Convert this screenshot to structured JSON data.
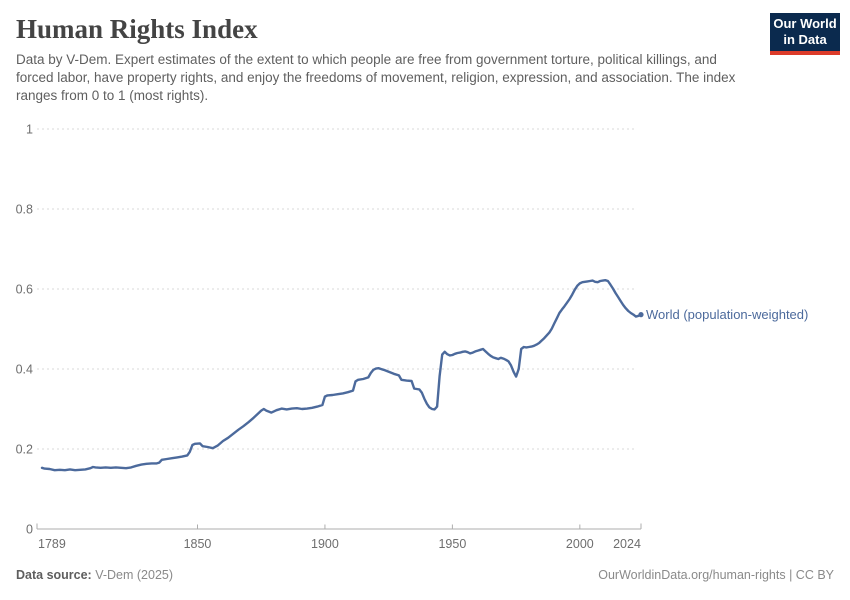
{
  "header": {
    "title": "Human Rights Index",
    "subtitle": "Data by V-Dem. Expert estimates of the extent to which people are free from government torture, political killings, and forced labor, have property rights, and enjoy the freedoms of movement, religion, expression, and association. The index ranges from 0 to 1 (most rights).",
    "logo": {
      "line1": "Our World",
      "line2": "in Data",
      "bg_color": "#0b2a4e",
      "accent_color": "#dc3b2a"
    }
  },
  "chart_data": {
    "type": "line",
    "title": "Human Rights Index",
    "xlabel": "",
    "ylabel": "",
    "xlim": [
      1789,
      2024
    ],
    "ylim": [
      0,
      1
    ],
    "x_ticks": [
      1789,
      1850,
      1900,
      1950,
      2000,
      2024
    ],
    "y_ticks": [
      0,
      0.2,
      0.4,
      0.6,
      0.8,
      1
    ],
    "grid": "dashed-horizontal",
    "legend_position": "right-of-line-end",
    "series": [
      {
        "name": "World (population-weighted)",
        "color": "#4C6A9C",
        "points": [
          [
            1789,
            0.153
          ],
          [
            1790,
            0.151
          ],
          [
            1792,
            0.15
          ],
          [
            1794,
            0.147
          ],
          [
            1796,
            0.148
          ],
          [
            1798,
            0.147
          ],
          [
            1800,
            0.149
          ],
          [
            1802,
            0.147
          ],
          [
            1804,
            0.148
          ],
          [
            1806,
            0.149
          ],
          [
            1808,
            0.152
          ],
          [
            1809,
            0.155
          ],
          [
            1810,
            0.154
          ],
          [
            1812,
            0.153
          ],
          [
            1814,
            0.154
          ],
          [
            1816,
            0.153
          ],
          [
            1818,
            0.154
          ],
          [
            1820,
            0.153
          ],
          [
            1822,
            0.152
          ],
          [
            1824,
            0.154
          ],
          [
            1826,
            0.158
          ],
          [
            1828,
            0.161
          ],
          [
            1830,
            0.163
          ],
          [
            1832,
            0.164
          ],
          [
            1834,
            0.164
          ],
          [
            1835,
            0.166
          ],
          [
            1836,
            0.173
          ],
          [
            1838,
            0.175
          ],
          [
            1840,
            0.177
          ],
          [
            1842,
            0.179
          ],
          [
            1844,
            0.181
          ],
          [
            1846,
            0.184
          ],
          [
            1847,
            0.193
          ],
          [
            1848,
            0.21
          ],
          [
            1849,
            0.213
          ],
          [
            1851,
            0.214
          ],
          [
            1852,
            0.207
          ],
          [
            1854,
            0.205
          ],
          [
            1856,
            0.202
          ],
          [
            1858,
            0.209
          ],
          [
            1860,
            0.22
          ],
          [
            1862,
            0.228
          ],
          [
            1864,
            0.238
          ],
          [
            1866,
            0.248
          ],
          [
            1868,
            0.257
          ],
          [
            1870,
            0.267
          ],
          [
            1872,
            0.278
          ],
          [
            1874,
            0.29
          ],
          [
            1875,
            0.296
          ],
          [
            1876,
            0.3
          ],
          [
            1877,
            0.296
          ],
          [
            1879,
            0.291
          ],
          [
            1881,
            0.297
          ],
          [
            1883,
            0.301
          ],
          [
            1885,
            0.299
          ],
          [
            1887,
            0.301
          ],
          [
            1889,
            0.302
          ],
          [
            1891,
            0.3
          ],
          [
            1893,
            0.301
          ],
          [
            1895,
            0.303
          ],
          [
            1897,
            0.306
          ],
          [
            1899,
            0.31
          ],
          [
            1900,
            0.331
          ],
          [
            1901,
            0.334
          ],
          [
            1903,
            0.335
          ],
          [
            1905,
            0.337
          ],
          [
            1907,
            0.339
          ],
          [
            1909,
            0.342
          ],
          [
            1911,
            0.346
          ],
          [
            1912,
            0.369
          ],
          [
            1913,
            0.373
          ],
          [
            1915,
            0.375
          ],
          [
            1917,
            0.379
          ],
          [
            1918,
            0.39
          ],
          [
            1919,
            0.398
          ],
          [
            1920,
            0.401
          ],
          [
            1921,
            0.402
          ],
          [
            1922,
            0.4
          ],
          [
            1923,
            0.398
          ],
          [
            1925,
            0.393
          ],
          [
            1927,
            0.388
          ],
          [
            1929,
            0.384
          ],
          [
            1930,
            0.373
          ],
          [
            1932,
            0.371
          ],
          [
            1934,
            0.37
          ],
          [
            1935,
            0.351
          ],
          [
            1936,
            0.35
          ],
          [
            1937,
            0.349
          ],
          [
            1938,
            0.341
          ],
          [
            1939,
            0.326
          ],
          [
            1940,
            0.313
          ],
          [
            1941,
            0.304
          ],
          [
            1942,
            0.3
          ],
          [
            1943,
            0.299
          ],
          [
            1944,
            0.306
          ],
          [
            1945,
            0.382
          ],
          [
            1946,
            0.436
          ],
          [
            1947,
            0.443
          ],
          [
            1948,
            0.437
          ],
          [
            1949,
            0.434
          ],
          [
            1950,
            0.435
          ],
          [
            1951,
            0.438
          ],
          [
            1952,
            0.44
          ],
          [
            1953,
            0.441
          ],
          [
            1954,
            0.443
          ],
          [
            1955,
            0.444
          ],
          [
            1956,
            0.442
          ],
          [
            1957,
            0.439
          ],
          [
            1958,
            0.441
          ],
          [
            1959,
            0.444
          ],
          [
            1960,
            0.446
          ],
          [
            1961,
            0.448
          ],
          [
            1962,
            0.45
          ],
          [
            1963,
            0.444
          ],
          [
            1964,
            0.438
          ],
          [
            1965,
            0.433
          ],
          [
            1966,
            0.429
          ],
          [
            1967,
            0.427
          ],
          [
            1968,
            0.425
          ],
          [
            1969,
            0.428
          ],
          [
            1970,
            0.426
          ],
          [
            1971,
            0.423
          ],
          [
            1972,
            0.419
          ],
          [
            1973,
            0.409
          ],
          [
            1974,
            0.393
          ],
          [
            1975,
            0.381
          ],
          [
            1976,
            0.4
          ],
          [
            1977,
            0.45
          ],
          [
            1978,
            0.455
          ],
          [
            1979,
            0.454
          ],
          [
            1980,
            0.455
          ],
          [
            1981,
            0.456
          ],
          [
            1982,
            0.458
          ],
          [
            1983,
            0.461
          ],
          [
            1984,
            0.465
          ],
          [
            1985,
            0.471
          ],
          [
            1986,
            0.477
          ],
          [
            1987,
            0.484
          ],
          [
            1988,
            0.491
          ],
          [
            1989,
            0.501
          ],
          [
            1990,
            0.514
          ],
          [
            1991,
            0.527
          ],
          [
            1992,
            0.54
          ],
          [
            1993,
            0.549
          ],
          [
            1994,
            0.557
          ],
          [
            1995,
            0.566
          ],
          [
            1996,
            0.575
          ],
          [
            1997,
            0.586
          ],
          [
            1998,
            0.598
          ],
          [
            1999,
            0.608
          ],
          [
            2000,
            0.614
          ],
          [
            2001,
            0.617
          ],
          [
            2002,
            0.618
          ],
          [
            2003,
            0.619
          ],
          [
            2004,
            0.62
          ],
          [
            2005,
            0.621
          ],
          [
            2006,
            0.618
          ],
          [
            2007,
            0.617
          ],
          [
            2008,
            0.62
          ],
          [
            2009,
            0.621
          ],
          [
            2010,
            0.622
          ],
          [
            2011,
            0.62
          ],
          [
            2012,
            0.611
          ],
          [
            2013,
            0.601
          ],
          [
            2014,
            0.59
          ],
          [
            2015,
            0.58
          ],
          [
            2016,
            0.57
          ],
          [
            2017,
            0.56
          ],
          [
            2018,
            0.552
          ],
          [
            2019,
            0.545
          ],
          [
            2020,
            0.54
          ],
          [
            2021,
            0.536
          ],
          [
            2022,
            0.531
          ],
          [
            2023,
            0.533
          ],
          [
            2024,
            0.536
          ]
        ]
      }
    ]
  },
  "footer": {
    "source_label": "Data source:",
    "source_value": " V-Dem (2025)",
    "right_text": "OurWorldinData.org/human-rights | CC BY"
  }
}
